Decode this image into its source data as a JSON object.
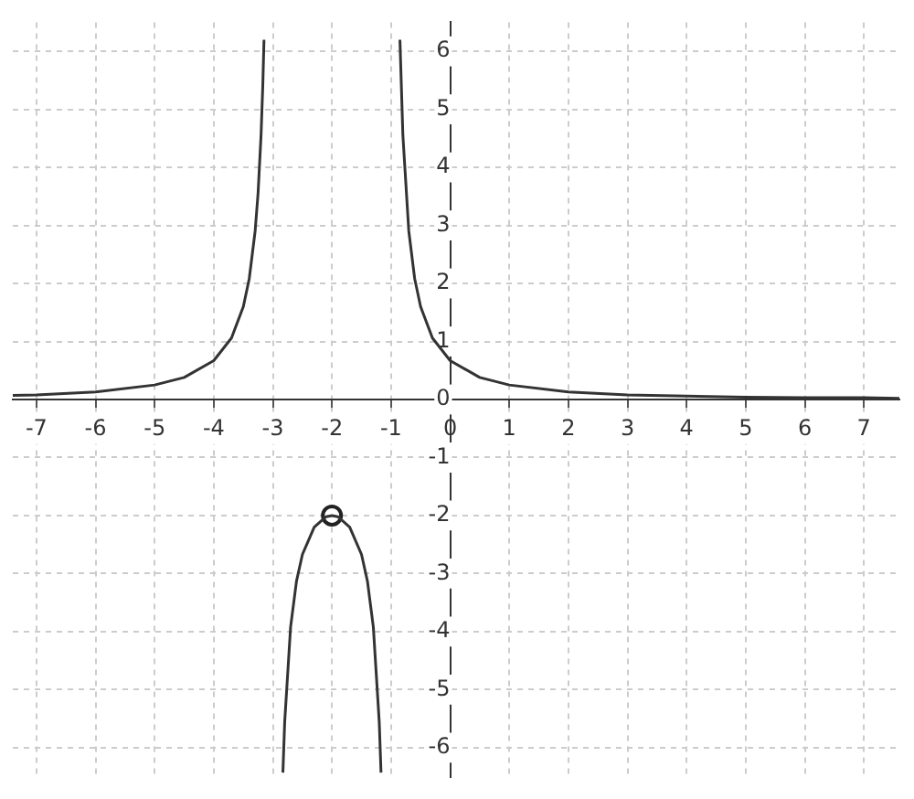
{
  "chart_data": {
    "type": "line",
    "xlim": [
      -7.4,
      7.6
    ],
    "ylim": [
      -6.5,
      6.5
    ],
    "xticks": [
      -7,
      -6,
      -5,
      -4,
      -3,
      -2,
      -1,
      0,
      1,
      2,
      3,
      4,
      5,
      6,
      7
    ],
    "yticks": [
      -6,
      -5,
      -4,
      -3,
      -2,
      -1,
      0,
      1,
      2,
      3,
      4,
      5,
      6
    ],
    "grid": true,
    "legend": false,
    "marker": "none",
    "line_style": "solid",
    "series": [
      {
        "color": "#333333",
        "x": [
          -7.4,
          -7,
          -6,
          -5,
          -4.5,
          -4,
          -3.7,
          -3.5,
          -3.4,
          -3.3,
          -3.25,
          -3.2,
          -3.17,
          -3.15
        ],
        "values": [
          0.07,
          0.08,
          0.13,
          0.25,
          0.38,
          0.67,
          1.06,
          1.6,
          2.08,
          2.9,
          3.56,
          4.55,
          5.42,
          6.2
        ]
      },
      {
        "color": "#333333",
        "x": [
          -2.83,
          -2.8,
          -2.7,
          -2.6,
          -2.5,
          -2.3,
          -2.1,
          -2,
          -1.9,
          -1.7,
          -1.5,
          -1.4,
          -1.3,
          -1.2,
          -1.17
        ],
        "values": [
          -6.43,
          -5.56,
          -3.92,
          -3.13,
          -2.67,
          -2.2,
          -2.02,
          -2,
          -2.02,
          -2.2,
          -2.67,
          -3.13,
          -3.92,
          -5.56,
          -6.43
        ]
      },
      {
        "color": "#333333",
        "x": [
          -0.85,
          -0.8,
          -0.7,
          -0.6,
          -0.5,
          -0.3,
          0,
          0.5,
          1,
          2,
          3,
          4,
          5,
          6,
          7,
          7.6
        ],
        "values": [
          6.2,
          4.55,
          2.9,
          2.08,
          1.6,
          1.06,
          0.67,
          0.38,
          0.25,
          0.13,
          0.08,
          0.06,
          0.04,
          0.03,
          0.03,
          0.02
        ]
      },
      {
        "type": "scatter",
        "marker": "circle",
        "color": "#222222",
        "x": [
          -2
        ],
        "values": [
          -2
        ]
      }
    ]
  }
}
